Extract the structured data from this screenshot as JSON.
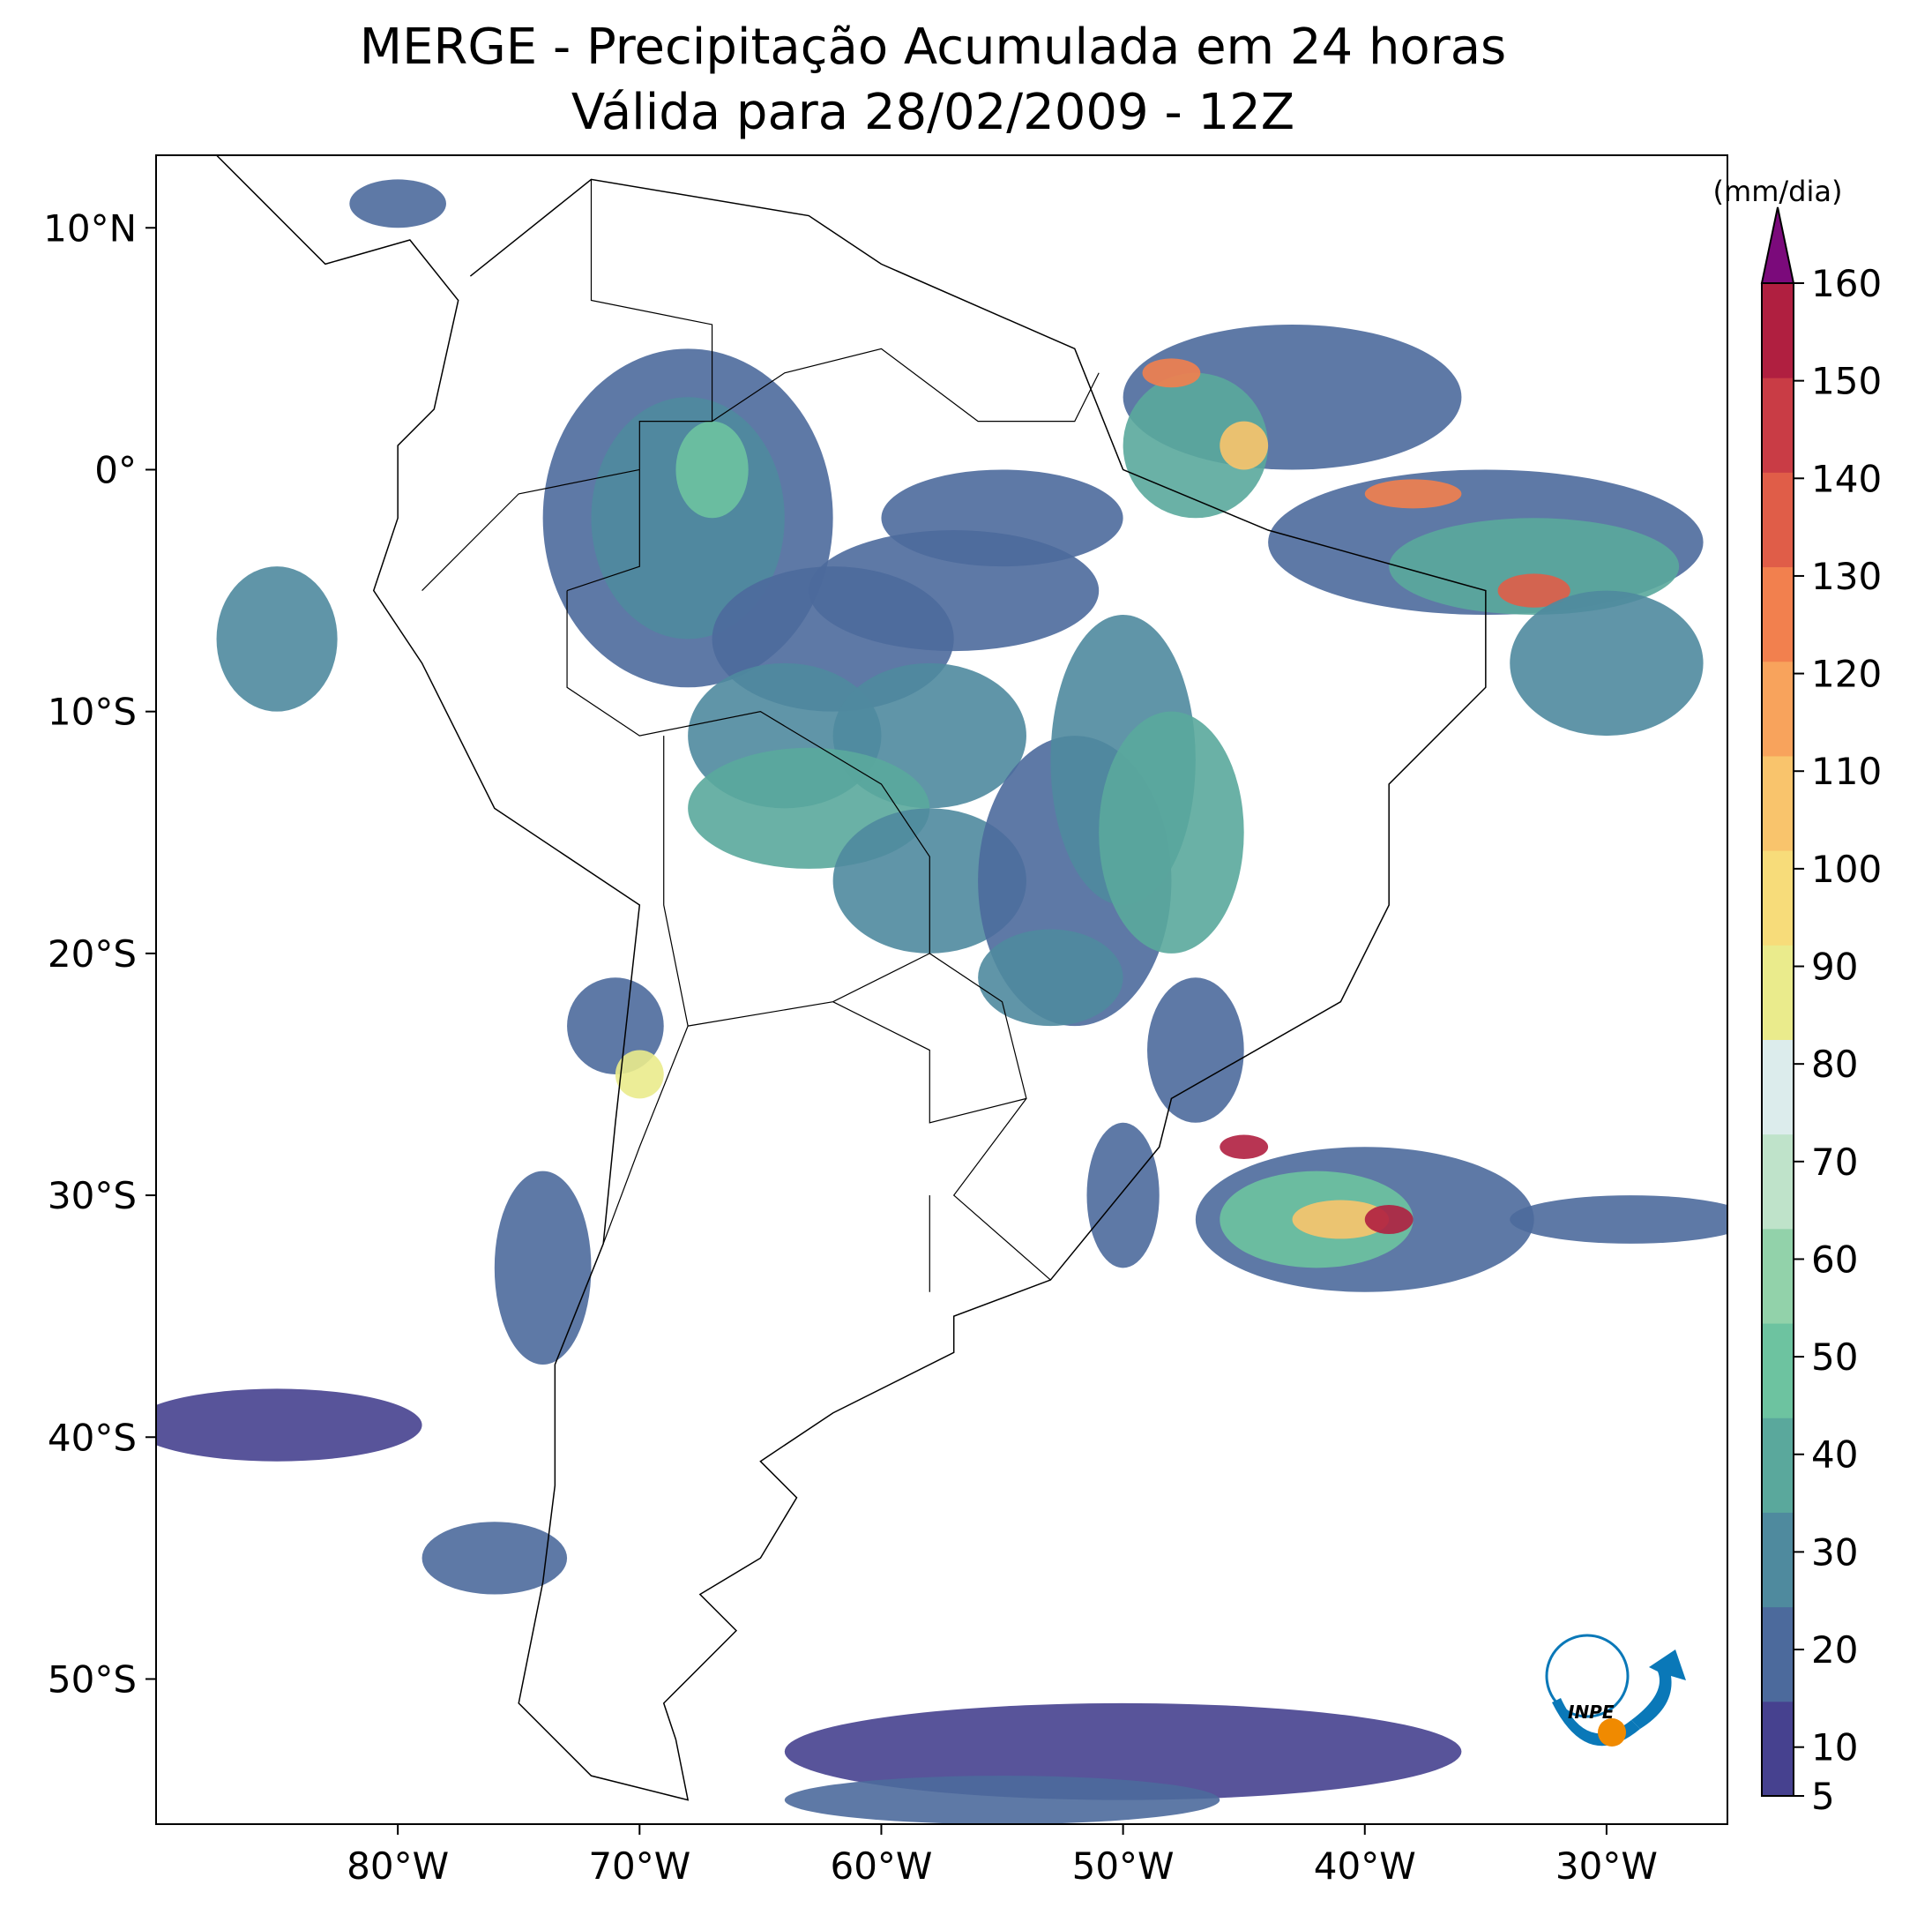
{
  "chart_data": {
    "type": "map",
    "title": "MERGE - Precipitação Acumulada em 24 horas",
    "subtitle": "Válida para 28/02/2009 - 12Z",
    "xlim": [
      -90,
      -25
    ],
    "ylim": [
      -56,
      13
    ],
    "xticks": [
      {
        "value": -80,
        "label": "80°W"
      },
      {
        "value": -70,
        "label": "70°W"
      },
      {
        "value": -60,
        "label": "60°W"
      },
      {
        "value": -50,
        "label": "50°W"
      },
      {
        "value": -40,
        "label": "40°W"
      },
      {
        "value": -30,
        "label": "30°W"
      }
    ],
    "yticks": [
      {
        "value": 10,
        "label": "10°N"
      },
      {
        "value": 0,
        "label": "0°"
      },
      {
        "value": -10,
        "label": "10°S"
      },
      {
        "value": -20,
        "label": "20°S"
      },
      {
        "value": -30,
        "label": "30°S"
      },
      {
        "value": -40,
        "label": "40°S"
      },
      {
        "value": -50,
        "label": "50°S"
      }
    ],
    "colorbar": {
      "label": "(mm/dia)",
      "lim": [
        5,
        160
      ],
      "ticks": [
        5,
        10,
        20,
        30,
        40,
        50,
        60,
        70,
        80,
        90,
        100,
        110,
        120,
        130,
        140,
        150,
        160
      ],
      "colors": [
        "#46418f",
        "#4c6a9c",
        "#4f8a9e",
        "#5aa89c",
        "#6dc3a0",
        "#92d2aa",
        "#bfe3ca",
        "#dcecec",
        "#eaeb8c",
        "#f7dc7a",
        "#f9c46c",
        "#f8a35c",
        "#f2804e",
        "#e05d48",
        "#c93c45",
        "#b01f40"
      ],
      "extend_color": "#7b0a7b"
    }
  }
}
